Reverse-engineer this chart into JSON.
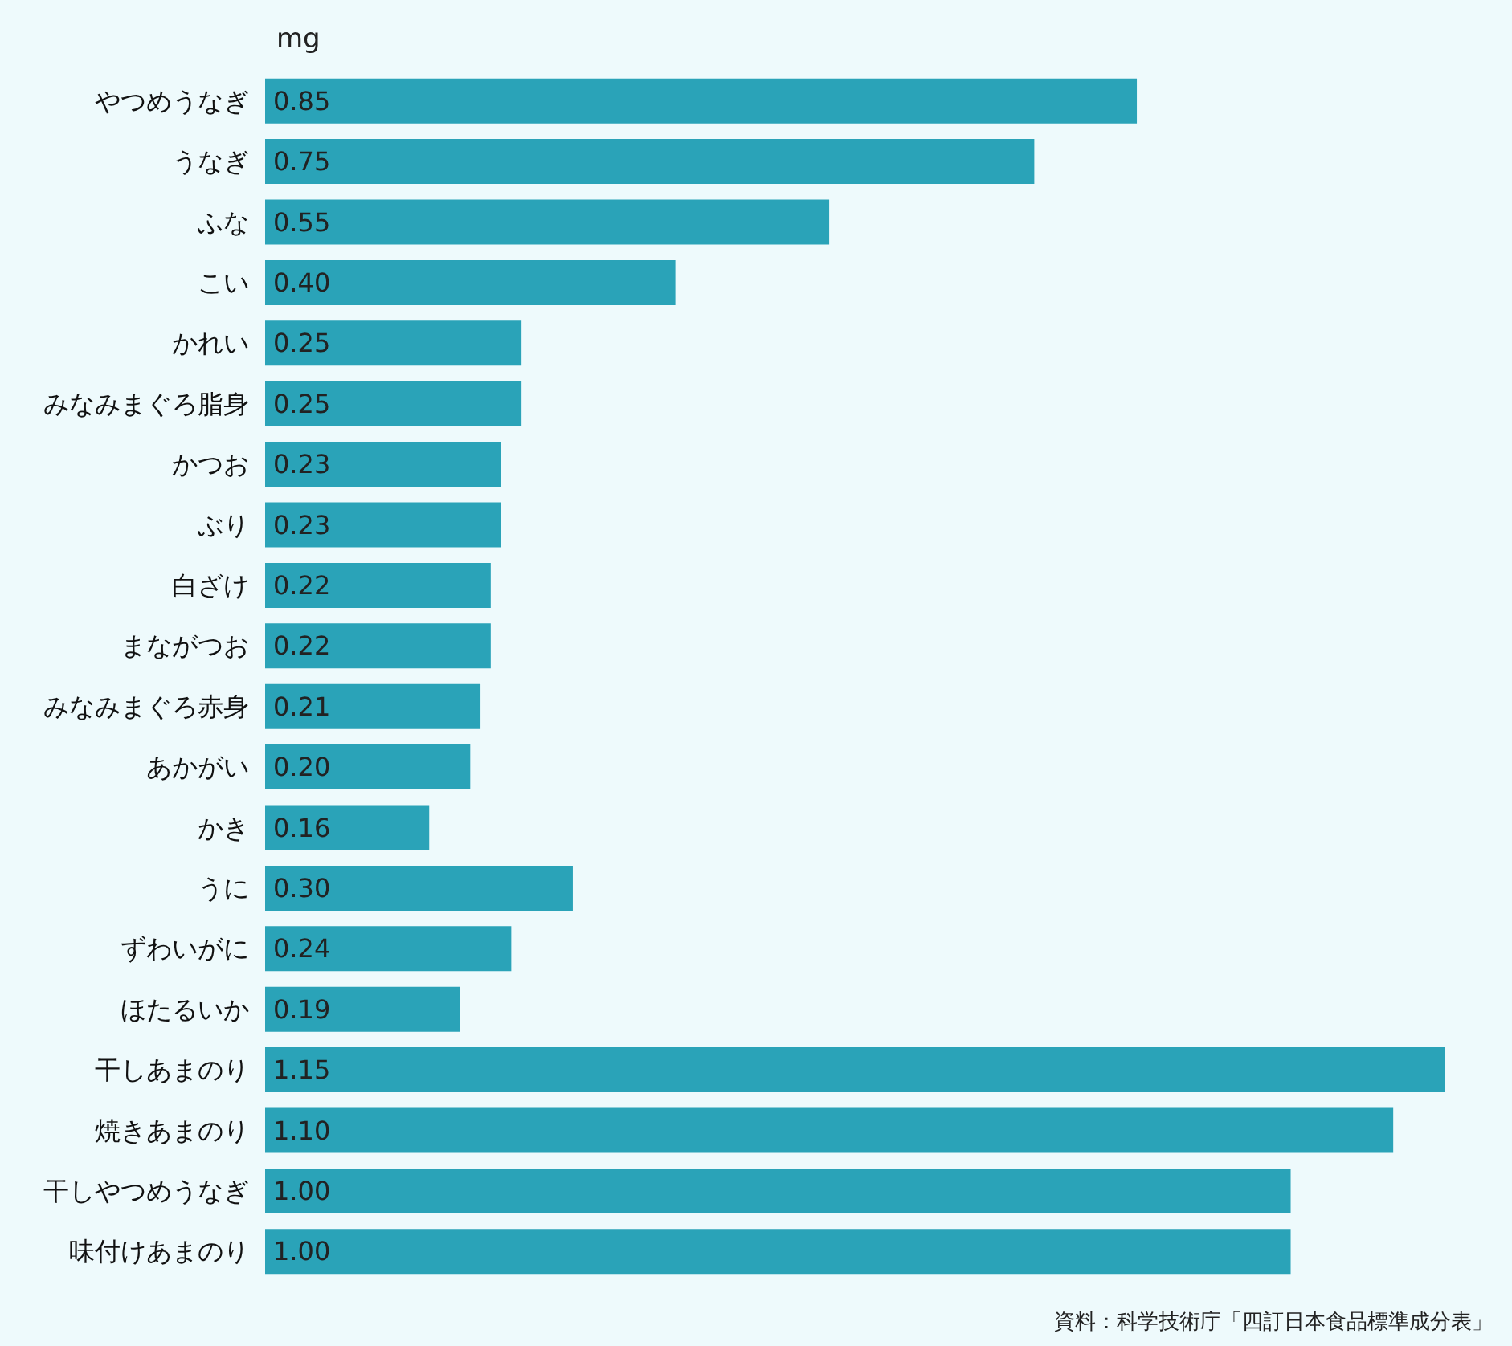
{
  "chart_data": {
    "type": "bar",
    "orientation": "horizontal",
    "xlabel": "mg",
    "categories": [
      "やつめうなぎ",
      "うなぎ",
      "ふな",
      "こい",
      "かれい",
      "みなみまぐろ脂身",
      "かつお",
      "ぶり",
      "白ざけ",
      "まながつお",
      "みなみまぐろ赤身",
      "あかがい",
      "かき",
      "うに",
      "ずわいがに",
      "ほたるいか",
      "干しあまのり",
      "焼きあまのり",
      "干しやつめうなぎ",
      "味付けあまのり"
    ],
    "values": [
      0.85,
      0.75,
      0.55,
      0.4,
      0.25,
      0.25,
      0.23,
      0.23,
      0.22,
      0.22,
      0.21,
      0.2,
      0.16,
      0.3,
      0.24,
      0.19,
      1.15,
      1.1,
      1.0,
      1.0
    ],
    "value_labels": [
      "0.85",
      "0.75",
      "0.55",
      "0.40",
      "0.25",
      "0.25",
      "0.23",
      "0.23",
      "0.22",
      "0.22",
      "0.21",
      "0.20",
      "0.16",
      "0.30",
      "0.24",
      "0.19",
      "1.15",
      "1.10",
      "1.00",
      "1.00"
    ],
    "color": "#2aa3b8",
    "annotations": [
      "資料：科学技術庁「四訂日本食品標準成分表」"
    ]
  }
}
